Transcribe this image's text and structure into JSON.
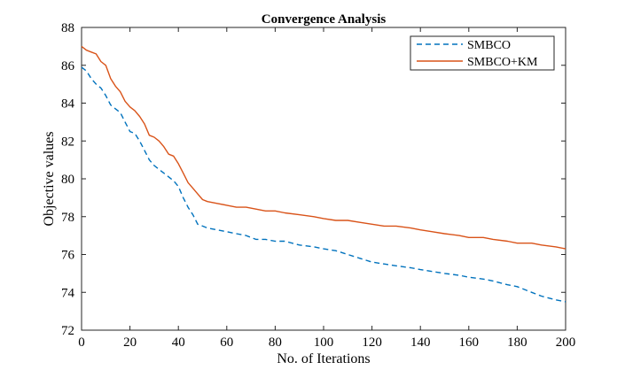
{
  "chart_data": {
    "type": "line",
    "title": "Convergence Analysis",
    "xlabel": "No. of Iterations",
    "ylabel": "Objective values",
    "xlim": [
      0,
      200
    ],
    "ylim": [
      72,
      88
    ],
    "xticks": [
      0,
      20,
      40,
      60,
      80,
      100,
      120,
      140,
      160,
      180,
      200
    ],
    "yticks": [
      72,
      74,
      76,
      78,
      80,
      82,
      84,
      86,
      88
    ],
    "grid": false,
    "legend_position": "top-right",
    "series": [
      {
        "name": "SMBCO",
        "color": "#0072BD",
        "style": "dashed",
        "x": [
          0,
          2,
          4,
          6,
          8,
          10,
          12,
          14,
          16,
          18,
          20,
          22,
          24,
          26,
          28,
          30,
          34,
          38,
          40,
          42,
          44,
          46,
          48,
          50,
          52,
          56,
          60,
          64,
          68,
          72,
          76,
          80,
          84,
          90,
          96,
          100,
          105,
          110,
          115,
          120,
          125,
          130,
          136,
          140,
          145,
          150,
          156,
          160,
          166,
          170,
          176,
          180,
          186,
          190,
          196,
          200
        ],
        "values": [
          85.9,
          85.7,
          85.3,
          85.0,
          84.8,
          84.4,
          83.9,
          83.7,
          83.5,
          83.0,
          82.5,
          82.4,
          82.0,
          81.5,
          81.0,
          80.7,
          80.3,
          79.9,
          79.6,
          79.0,
          78.5,
          78.1,
          77.6,
          77.5,
          77.4,
          77.3,
          77.2,
          77.1,
          77.0,
          76.8,
          76.8,
          76.7,
          76.7,
          76.5,
          76.4,
          76.3,
          76.2,
          76.0,
          75.8,
          75.6,
          75.5,
          75.4,
          75.3,
          75.2,
          75.1,
          75.0,
          74.9,
          74.8,
          74.7,
          74.6,
          74.4,
          74.3,
          74.0,
          73.8,
          73.6,
          73.5
        ]
      },
      {
        "name": "SMBCO+KM",
        "color": "#D95319",
        "style": "solid",
        "x": [
          0,
          2,
          4,
          6,
          8,
          10,
          12,
          14,
          16,
          18,
          20,
          22,
          24,
          26,
          28,
          30,
          32,
          34,
          36,
          38,
          40,
          42,
          44,
          46,
          48,
          50,
          52,
          56,
          60,
          64,
          68,
          72,
          76,
          80,
          84,
          90,
          96,
          100,
          105,
          110,
          115,
          120,
          125,
          130,
          136,
          140,
          145,
          150,
          156,
          160,
          166,
          170,
          176,
          180,
          186,
          190,
          196,
          200
        ],
        "values": [
          87.0,
          86.8,
          86.7,
          86.6,
          86.2,
          86.0,
          85.3,
          84.9,
          84.6,
          84.1,
          83.8,
          83.6,
          83.3,
          82.9,
          82.3,
          82.2,
          82.0,
          81.7,
          81.3,
          81.2,
          80.8,
          80.3,
          79.8,
          79.5,
          79.2,
          78.9,
          78.8,
          78.7,
          78.6,
          78.5,
          78.5,
          78.4,
          78.3,
          78.3,
          78.2,
          78.1,
          78.0,
          77.9,
          77.8,
          77.8,
          77.7,
          77.6,
          77.5,
          77.5,
          77.4,
          77.3,
          77.2,
          77.1,
          77.0,
          76.9,
          76.9,
          76.8,
          76.7,
          76.6,
          76.6,
          76.5,
          76.4,
          76.3
        ]
      }
    ]
  }
}
